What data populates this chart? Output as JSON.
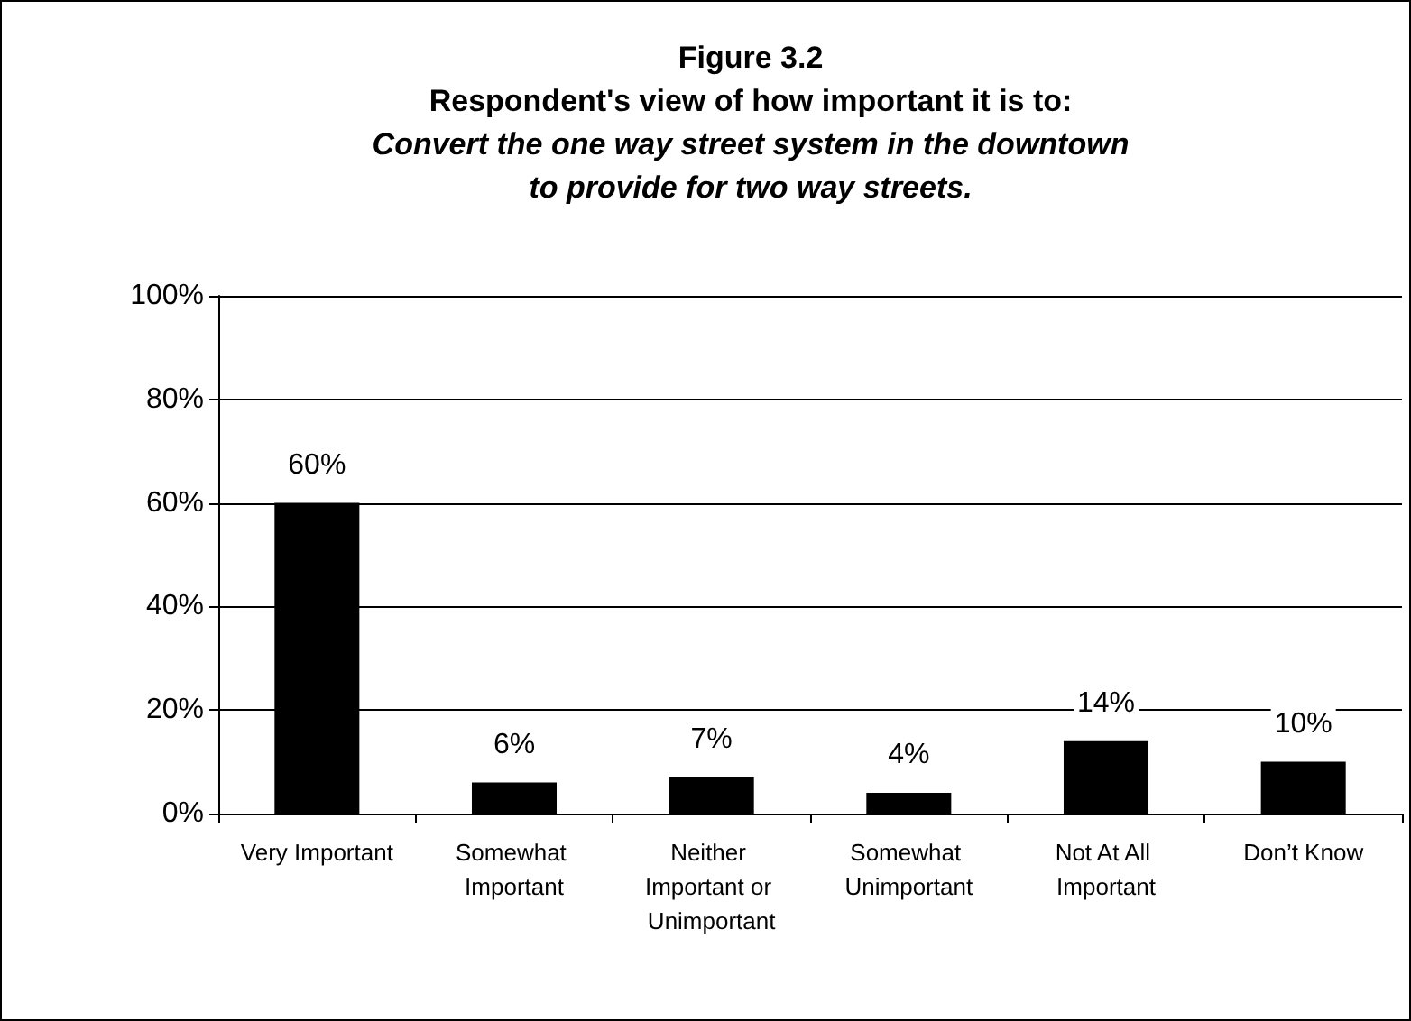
{
  "chart_data": {
    "type": "bar",
    "title": "Figure 3.2\nRespondent's view of how important it is to:",
    "subtitle": "Convert the one way street system in the downtown\nto provide for two way streets.",
    "categories": [
      "Very Important",
      "Somewhat Important",
      "Neither Important or Unimportant",
      "Somewhat Unimportant",
      "Not At All Important",
      "Don’t Know"
    ],
    "values": [
      60,
      6,
      7,
      4,
      14,
      10
    ],
    "value_labels": [
      "60%",
      "6%",
      "7%",
      "4%",
      "14%",
      "10%"
    ],
    "color": "#000000",
    "ylim": [
      0,
      100
    ],
    "yticks": [
      {
        "value": 0,
        "label": "0%"
      },
      {
        "value": 20,
        "label": "20%"
      },
      {
        "value": 40,
        "label": "40%"
      },
      {
        "value": 60,
        "label": "60%"
      },
      {
        "value": 80,
        "label": "80%"
      },
      {
        "value": 100,
        "label": "100%"
      }
    ],
    "grid": "y"
  }
}
